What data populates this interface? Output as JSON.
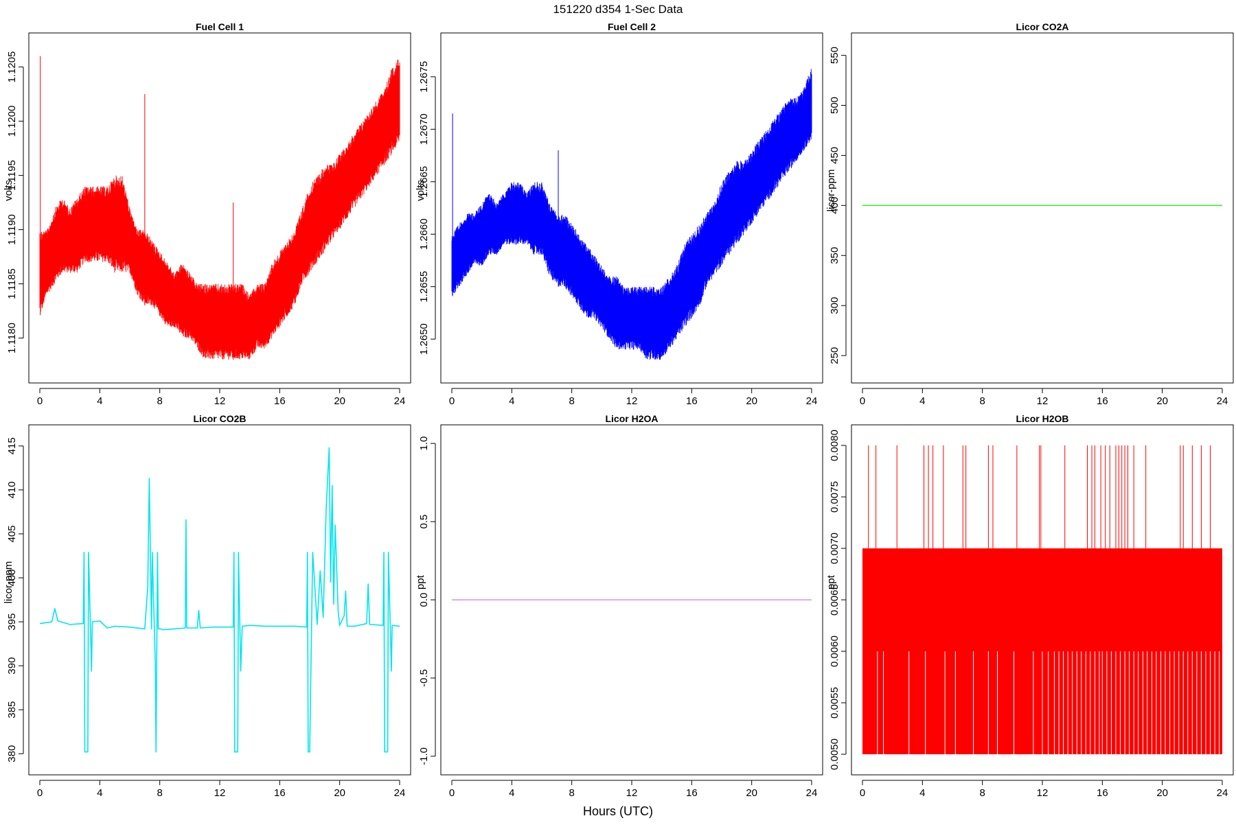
{
  "figure": {
    "title": "151220   d354   1-Sec Data",
    "xlabel": "Hours (UTC)"
  },
  "chart_data": [
    {
      "type": "line",
      "title": "Fuel Cell 1",
      "ylabel": "volts",
      "color": "#ff0000",
      "xlim": [
        0,
        24
      ],
      "ylim": [
        1.1177,
        1.1207
      ],
      "xticks": [
        0,
        4,
        8,
        12,
        16,
        20,
        24
      ],
      "yticks": [
        1.118,
        1.1185,
        1.119,
        1.1195,
        1.12,
        1.1205
      ],
      "ytick_labels": [
        "1.1180",
        "1.1185",
        "1.1190",
        "1.1195",
        "1.1200",
        "1.1205"
      ],
      "series": [
        {
          "x": [
            0,
            0.5,
            1,
            1.5,
            2,
            2.5,
            3,
            3.5,
            4,
            4.5,
            5,
            5.5,
            6,
            6.5,
            7,
            7.5,
            8,
            8.5,
            9,
            9.5,
            10,
            10.5,
            11,
            11.5,
            12,
            12.5,
            13,
            13.5,
            14,
            14.5,
            15,
            15.5,
            16,
            16.5,
            17,
            17.5,
            18,
            18.5,
            19,
            19.5,
            20,
            20.5,
            21,
            21.5,
            22,
            22.5,
            23,
            23.5,
            24
          ],
          "upper": [
            1.119,
            1.119,
            1.1192,
            1.1193,
            1.1192,
            1.1193,
            1.1194,
            1.1194,
            1.1194,
            1.1194,
            1.1195,
            1.1195,
            1.1192,
            1.119,
            1.119,
            1.1189,
            1.1188,
            1.1187,
            1.1186,
            1.1187,
            1.1186,
            1.1185,
            1.1185,
            1.1185,
            1.1185,
            1.1185,
            1.1185,
            1.1185,
            1.1184,
            1.1185,
            1.1185,
            1.1187,
            1.1188,
            1.1189,
            1.119,
            1.1192,
            1.1194,
            1.1195,
            1.1196,
            1.1196,
            1.1197,
            1.1198,
            1.1199,
            1.12,
            1.1201,
            1.1202,
            1.1203,
            1.1205,
            1.1206
          ],
          "lower": [
            1.1182,
            1.1184,
            1.1185,
            1.1186,
            1.1186,
            1.1186,
            1.1187,
            1.1187,
            1.1187,
            1.1187,
            1.1186,
            1.1186,
            1.1186,
            1.1184,
            1.1183,
            1.1183,
            1.1182,
            1.1181,
            1.1181,
            1.118,
            1.118,
            1.1179,
            1.1178,
            1.1178,
            1.1178,
            1.1178,
            1.1178,
            1.1178,
            1.1178,
            1.1179,
            1.1179,
            1.118,
            1.1181,
            1.1182,
            1.1183,
            1.1185,
            1.1186,
            1.1187,
            1.1188,
            1.1189,
            1.119,
            1.1191,
            1.1192,
            1.1193,
            1.1194,
            1.1195,
            1.1196,
            1.1197,
            1.1198
          ],
          "spikes": [
            [
              0.03,
              1.1206
            ],
            [
              7.0,
              1.12025
            ],
            [
              12.9,
              1.11925
            ]
          ]
        }
      ]
    },
    {
      "type": "line",
      "title": "Fuel Cell 2",
      "ylabel": "volts",
      "color": "#0000ff",
      "xlim": [
        0,
        24
      ],
      "ylim": [
        1.2647,
        1.2678
      ],
      "xticks": [
        0,
        4,
        8,
        12,
        16,
        20,
        24
      ],
      "yticks": [
        1.265,
        1.2655,
        1.266,
        1.2665,
        1.267,
        1.2675
      ],
      "ytick_labels": [
        "1.2650",
        "1.2655",
        "1.2660",
        "1.2665",
        "1.2670",
        "1.2675"
      ],
      "series": [
        {
          "x": [
            0,
            0.5,
            1,
            1.5,
            2,
            2.5,
            3,
            3.5,
            4,
            4.5,
            5,
            5.5,
            6,
            6.5,
            7,
            7.5,
            8,
            8.5,
            9,
            9.5,
            10,
            10.5,
            11,
            11.5,
            12,
            12.5,
            13,
            13.5,
            14,
            14.5,
            15,
            15.5,
            16,
            16.5,
            17,
            17.5,
            18,
            18.5,
            19,
            19.5,
            20,
            20.5,
            21,
            21.5,
            22,
            22.5,
            23,
            23.5,
            24
          ],
          "upper": [
            1.266,
            1.2661,
            1.2662,
            1.2662,
            1.2663,
            1.2664,
            1.2663,
            1.2664,
            1.2665,
            1.2665,
            1.2664,
            1.2665,
            1.2665,
            1.2663,
            1.2662,
            1.2662,
            1.2661,
            1.266,
            1.2659,
            1.2658,
            1.2657,
            1.2656,
            1.2656,
            1.2655,
            1.2655,
            1.2655,
            1.2655,
            1.2655,
            1.2655,
            1.2656,
            1.2657,
            1.2659,
            1.266,
            1.2661,
            1.2662,
            1.2663,
            1.2665,
            1.2666,
            1.2667,
            1.2667,
            1.2668,
            1.2669,
            1.267,
            1.2671,
            1.2672,
            1.2673,
            1.2673,
            1.2674,
            1.2676
          ],
          "lower": [
            1.2654,
            1.2655,
            1.2656,
            1.2657,
            1.2657,
            1.2658,
            1.2658,
            1.2659,
            1.2659,
            1.2659,
            1.2659,
            1.2658,
            1.2658,
            1.2656,
            1.2655,
            1.2655,
            1.2654,
            1.2653,
            1.2652,
            1.2652,
            1.2651,
            1.265,
            1.2649,
            1.2649,
            1.2649,
            1.2649,
            1.2648,
            1.2648,
            1.2648,
            1.2649,
            1.265,
            1.2651,
            1.2652,
            1.2653,
            1.2655,
            1.2656,
            1.2657,
            1.2658,
            1.2659,
            1.266,
            1.2661,
            1.2662,
            1.2663,
            1.2664,
            1.2665,
            1.2666,
            1.2667,
            1.2668,
            1.2669
          ],
          "spikes": [
            [
              0.05,
              1.26715
            ],
            [
              7.1,
              1.2668
            ]
          ]
        }
      ]
    },
    {
      "type": "line",
      "title": "Licor CO2A",
      "ylabel": "licor-ppm",
      "color": "#00ff00",
      "xlim": [
        0,
        24
      ],
      "ylim": [
        235,
        560
      ],
      "xticks": [
        0,
        4,
        8,
        12,
        16,
        20,
        24
      ],
      "yticks": [
        250,
        300,
        350,
        400,
        450,
        500,
        550
      ],
      "ytick_labels": [
        "250",
        "300",
        "350",
        "400",
        "450",
        "500",
        "550"
      ],
      "series": [
        {
          "x": [
            0,
            24
          ],
          "y": [
            400,
            400
          ]
        }
      ]
    },
    {
      "type": "line",
      "title": "Licor CO2B",
      "ylabel": "licor-ppm",
      "color": "#00e5ee",
      "xlim": [
        0,
        24
      ],
      "ylim": [
        379,
        416
      ],
      "xticks": [
        0,
        4,
        8,
        12,
        16,
        20,
        24
      ],
      "yticks": [
        380,
        385,
        390,
        395,
        400,
        405,
        410,
        415
      ],
      "ytick_labels": [
        "380",
        "385",
        "390",
        "395",
        "400",
        "405",
        "410",
        "415"
      ],
      "series": [
        {
          "x": [
            0,
            0.8,
            1.0,
            1.2,
            2.0,
            2.9,
            2.95,
            3.0,
            3.2,
            3.25,
            3.45,
            3.5,
            4.0,
            4.5,
            5.0,
            6.0,
            7.0,
            7.2,
            7.3,
            7.45,
            7.5,
            7.7,
            7.75,
            7.85,
            7.9,
            8.0,
            8.05,
            8.2,
            9.0,
            9.7,
            9.75,
            9.8,
            10.5,
            10.6,
            10.7,
            11.5,
            12.0,
            12.9,
            12.95,
            13.0,
            13.2,
            13.25,
            13.4,
            13.5,
            14.0,
            15.0,
            16.0,
            17.0,
            17.8,
            17.85,
            17.9,
            18.0,
            18.2,
            18.3,
            18.5,
            18.7,
            18.9,
            19.1,
            19.3,
            19.4,
            19.5,
            19.6,
            19.7,
            19.9,
            20.0,
            20.3,
            20.4,
            20.5,
            21.0,
            21.8,
            21.9,
            22.0,
            22.9,
            22.95,
            23.0,
            23.2,
            23.25,
            23.45,
            23.5,
            24.0
          ],
          "y": [
            394.8,
            395.0,
            396.5,
            395.1,
            394.7,
            394.8,
            402.9,
            380.2,
            380.2,
            402.9,
            389.4,
            395.0,
            395.1,
            394.3,
            394.5,
            394.4,
            394.2,
            399.0,
            411.3,
            394.2,
            402.9,
            390.4,
            380.2,
            402.9,
            394.2,
            394.2,
            394.2,
            394.1,
            394.2,
            394.3,
            406.6,
            394.3,
            394.3,
            396.3,
            394.3,
            394.4,
            394.4,
            394.4,
            402.9,
            380.2,
            380.2,
            402.9,
            389.4,
            394.5,
            394.6,
            394.5,
            394.5,
            394.5,
            394.4,
            402.9,
            380.2,
            380.2,
            402.9,
            400.2,
            394.7,
            400.8,
            395.5,
            407.9,
            414.8,
            399.5,
            410.5,
            397.0,
            406.0,
            396.2,
            394.6,
            395.7,
            398.5,
            394.5,
            394.5,
            394.8,
            399.3,
            394.7,
            394.6,
            402.9,
            380.2,
            380.2,
            402.9,
            389.4,
            394.6,
            394.5
          ]
        }
      ]
    },
    {
      "type": "line",
      "title": "Licor H2OA",
      "ylabel": "ppt",
      "color": "#dd77dd",
      "xlim": [
        0,
        24
      ],
      "ylim": [
        -1.04,
        1.04
      ],
      "xticks": [
        0,
        4,
        8,
        12,
        16,
        20,
        24
      ],
      "yticks": [
        -1.0,
        -0.5,
        0.0,
        0.5,
        1.0
      ],
      "ytick_labels": [
        "-1.0",
        "-0.5",
        "0.0",
        "0.5",
        "1.0"
      ],
      "series": [
        {
          "x": [
            0,
            24
          ],
          "y": [
            0.0,
            0.0
          ]
        }
      ]
    },
    {
      "type": "area",
      "title": "Licor H2OB",
      "ylabel": "ppt",
      "color": "#ff0000",
      "xlim": [
        0,
        24
      ],
      "ylim": [
        0.00492,
        0.00808
      ],
      "xticks": [
        0,
        4,
        8,
        12,
        16,
        20,
        24
      ],
      "yticks": [
        0.005,
        0.0055,
        0.006,
        0.0065,
        0.007,
        0.0075,
        0.008
      ],
      "ytick_labels": [
        "0.0050",
        "0.0055",
        "0.0060",
        "0.0065",
        "0.0070",
        "0.0075",
        "0.0080"
      ],
      "band_low": 0.005,
      "band_high": 0.007,
      "upper_spikes_x": [
        0.4,
        0.9,
        2.3,
        4.1,
        4.4,
        4.7,
        5.4,
        6.7,
        6.9,
        8.4,
        8.7,
        10.3,
        11.8,
        11.9,
        13.5,
        15.0,
        15.3,
        15.5,
        15.9,
        16.2,
        16.5,
        16.9,
        17.1,
        17.3,
        17.5,
        17.7,
        18.1,
        18.9,
        21.2,
        21.4,
        22.0,
        22.6,
        23.2
      ],
      "dropout_x": [
        1.0,
        1.4,
        3.1,
        4.2,
        5.5,
        6.2,
        7.4,
        8.4,
        9.0,
        10.1,
        11.4,
        12.0,
        12.4,
        12.8,
        13.1,
        13.4,
        13.7,
        14.0,
        14.3,
        14.6,
        14.9,
        15.2,
        15.5,
        15.8,
        16.0,
        16.3,
        16.6,
        16.9,
        17.2,
        17.5,
        17.8,
        18.1,
        18.4,
        18.7,
        19.0,
        19.3,
        19.6,
        19.9,
        20.2,
        20.5,
        20.8,
        21.1,
        21.4,
        21.7,
        22.0,
        22.3,
        22.6,
        22.9,
        23.2,
        23.5,
        23.8
      ]
    }
  ]
}
